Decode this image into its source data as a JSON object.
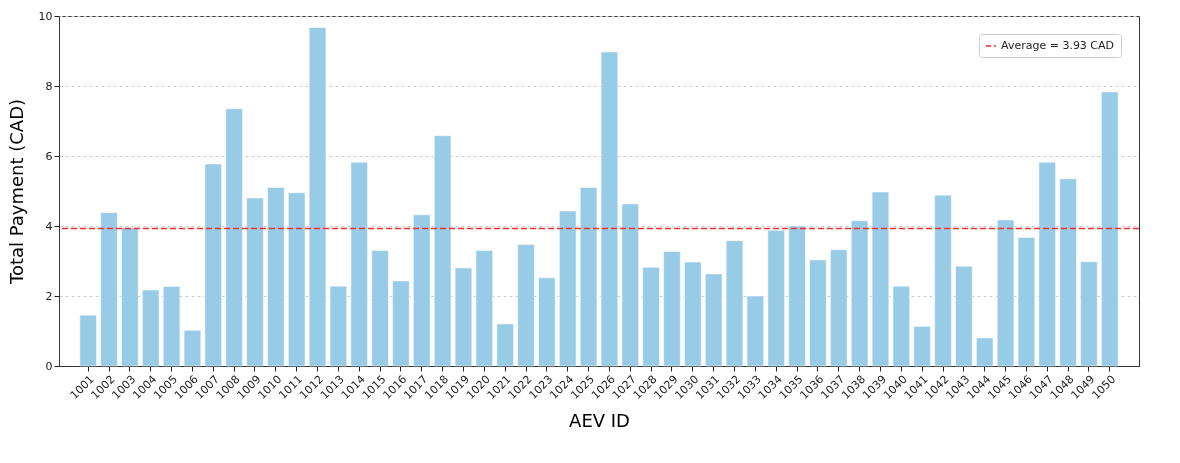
{
  "chart_data": {
    "type": "bar",
    "xlabel": "AEV ID",
    "ylabel": "Total Payment (CAD)",
    "categories": [
      "1001",
      "1002",
      "1003",
      "1004",
      "1005",
      "1006",
      "1007",
      "1008",
      "1009",
      "1010",
      "1011",
      "1012",
      "1013",
      "1014",
      "1015",
      "1016",
      "1017",
      "1018",
      "1019",
      "1020",
      "1021",
      "1022",
      "1023",
      "1024",
      "1025",
      "1026",
      "1027",
      "1028",
      "1029",
      "1030",
      "1031",
      "1032",
      "1033",
      "1034",
      "1035",
      "1036",
      "1037",
      "1038",
      "1039",
      "1040",
      "1041",
      "1042",
      "1043",
      "1044",
      "1045",
      "1046",
      "1047",
      "1048",
      "1049",
      "1050"
    ],
    "values": [
      1.45,
      4.38,
      3.95,
      2.17,
      2.27,
      1.02,
      5.77,
      7.35,
      4.8,
      5.1,
      4.95,
      9.67,
      2.28,
      5.82,
      3.3,
      2.43,
      4.32,
      6.58,
      2.8,
      3.3,
      1.2,
      3.47,
      2.52,
      4.43,
      5.1,
      8.97,
      4.63,
      2.82,
      3.27,
      2.97,
      2.63,
      3.58,
      2.0,
      3.88,
      4.0,
      3.03,
      3.32,
      4.15,
      4.97,
      2.28,
      1.13,
      4.88,
      2.85,
      0.8,
      4.17,
      3.67,
      5.82,
      5.35,
      2.98,
      7.83
    ],
    "color": "#98cbe6",
    "ylim": [
      0,
      10
    ],
    "yticks": [
      0,
      2,
      4,
      6,
      8,
      10
    ],
    "grid": "y",
    "legend": "top right",
    "ref_lines": [
      {
        "axis": "y",
        "value": 3.93,
        "label": "Average = 3.93 CAD",
        "color": "#ff2a2a",
        "line_style": "dashed"
      }
    ]
  }
}
